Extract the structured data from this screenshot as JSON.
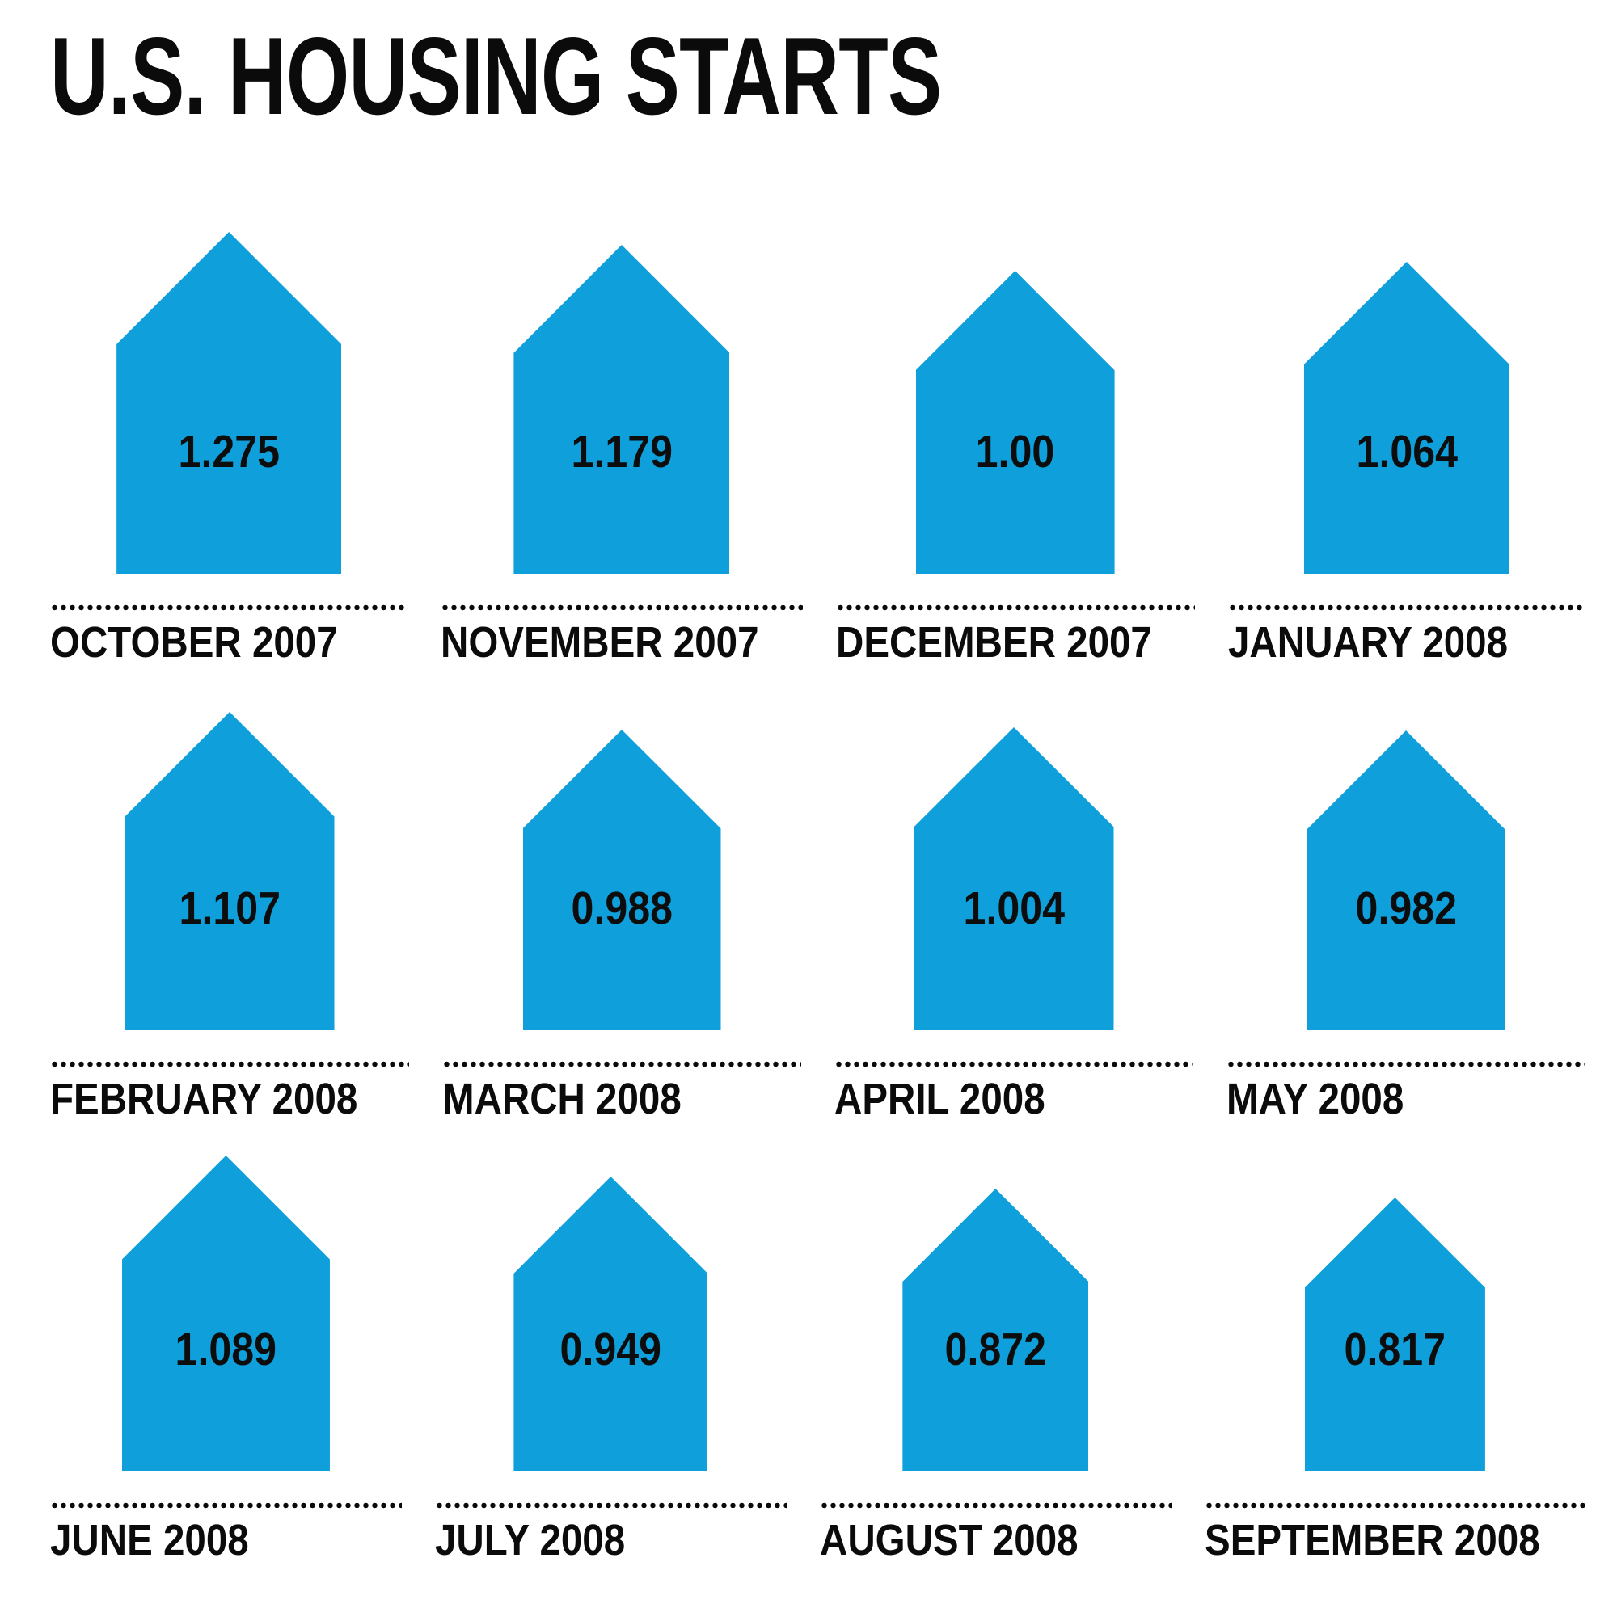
{
  "title": "U.S. HOUSING STARTS",
  "style": {
    "house_fill": "#0f9fdb",
    "text_color": "#0b0b0b",
    "background": "#ffffff"
  },
  "chart_data": {
    "type": "pictogram-bar",
    "title": "U.S. HOUSING STARTS",
    "xlabel": "",
    "ylabel": "",
    "legend": "none",
    "layout": "3 rows x 4 columns, house icons bottom-aligned per row, icon area proportional to value, dotted rule above each month label",
    "categories": [
      "OCTOBER 2007",
      "NOVEMBER 2007",
      "DECEMBER 2007",
      "JANUARY 2008",
      "FEBRUARY 2008",
      "MARCH 2008",
      "APRIL 2008",
      "MAY 2008",
      "JUNE 2008",
      "JULY 2008",
      "AUGUST 2008",
      "SEPTEMBER 2008"
    ],
    "values": [
      1.275,
      1.179,
      1.0,
      1.064,
      1.107,
      0.988,
      1.004,
      0.982,
      1.089,
      0.949,
      0.872,
      0.817
    ],
    "items": [
      {
        "label": "OCTOBER 2007",
        "value": 1.275,
        "display_value": "1.275"
      },
      {
        "label": "NOVEMBER 2007",
        "value": 1.179,
        "display_value": "1.179"
      },
      {
        "label": "DECEMBER 2007",
        "value": 1.0,
        "display_value": "1.00"
      },
      {
        "label": "JANUARY 2008",
        "value": 1.064,
        "display_value": "1.064"
      },
      {
        "label": "FEBRUARY 2008",
        "value": 1.107,
        "display_value": "1.107"
      },
      {
        "label": "MARCH 2008",
        "value": 0.988,
        "display_value": "0.988"
      },
      {
        "label": "APRIL 2008",
        "value": 1.004,
        "display_value": "1.004"
      },
      {
        "label": "MAY 2008",
        "value": 0.982,
        "display_value": "0.982"
      },
      {
        "label": "JUNE 2008",
        "value": 1.089,
        "display_value": "1.089"
      },
      {
        "label": "JULY 2008",
        "value": 0.949,
        "display_value": "0.949"
      },
      {
        "label": "AUGUST 2008",
        "value": 0.872,
        "display_value": "0.872"
      },
      {
        "label": "SEPTEMBER 2008",
        "value": 0.817,
        "display_value": "0.817"
      }
    ]
  }
}
